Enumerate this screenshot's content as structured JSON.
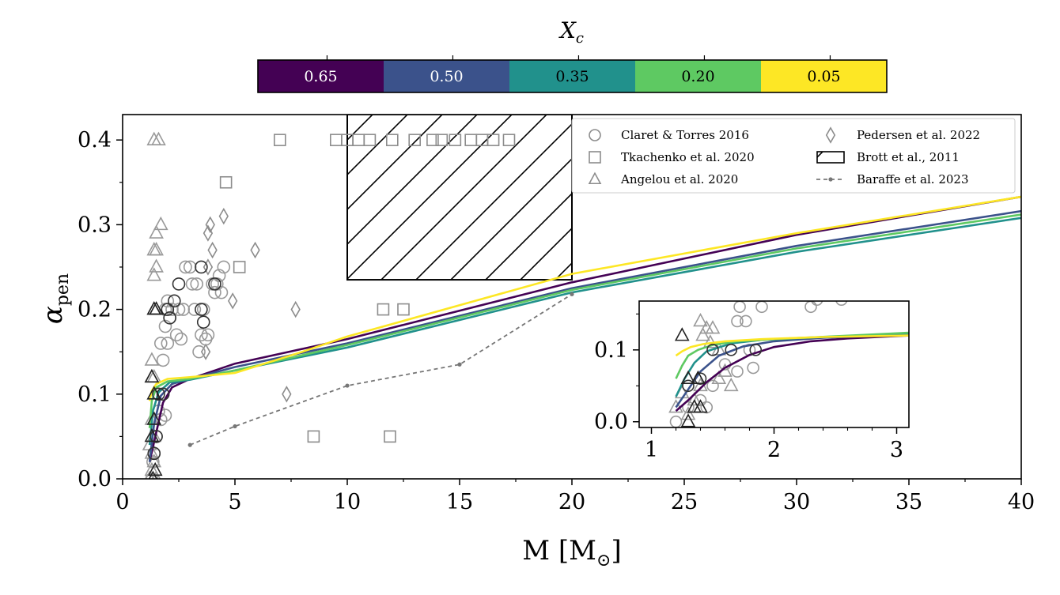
{
  "chart_data": {
    "type": "scatter",
    "title": "",
    "xlabel": "M [M",
    "xlabel_sub": "⊙",
    "xlabel_end": "]",
    "ylabel": "α",
    "ylabel_sub": "pen",
    "xlim": [
      0,
      40
    ],
    "ylim": [
      0,
      0.43
    ],
    "x_ticks": [
      0,
      5,
      10,
      15,
      20,
      25,
      30,
      35,
      40
    ],
    "x_tick_labels": [
      "0",
      "5",
      "10",
      "15",
      "20",
      "25",
      "30",
      "35",
      "40"
    ],
    "y_ticks": [
      0.0,
      0.1,
      0.2,
      0.3,
      0.4
    ],
    "y_tick_labels": [
      "0.0",
      "0.1",
      "0.2",
      "0.3",
      "0.4"
    ],
    "colorbar": {
      "title": "X",
      "title_sub": "c",
      "labels": [
        "0.65",
        "0.50",
        "0.35",
        "0.20",
        "0.05"
      ],
      "colors": [
        "#440154",
        "#3b528b",
        "#21918c",
        "#5ec962",
        "#fde725"
      ],
      "label_colors": [
        "#ffffff",
        "#ffffff",
        "#000000",
        "#000000",
        "#000000"
      ]
    },
    "legend": {
      "position": "upper-right",
      "entries": [
        {
          "label": "Claret & Torres 2016",
          "marker": "circle"
        },
        {
          "label": "Tkachenko et al. 2020",
          "marker": "square"
        },
        {
          "label": "Angelou et al. 2020",
          "marker": "triangle"
        },
        {
          "label": "Pedersen et al. 2022",
          "marker": "diamond"
        },
        {
          "label": "Brott et al.,  2011",
          "marker": "hatch"
        },
        {
          "label": "Baraffe et al. 2023",
          "marker": "dashed"
        }
      ]
    },
    "brott_region": {
      "x": [
        10,
        20
      ],
      "y": [
        0.235,
        0.43
      ]
    },
    "baraffe": {
      "x": [
        3,
        5,
        10,
        15,
        20
      ],
      "y": [
        0.04,
        0.062,
        0.11,
        0.135,
        0.218
      ]
    },
    "series": [
      {
        "name": "0.65",
        "color": "#440154",
        "x": [
          1.2,
          1.5,
          1.8,
          2.2,
          3,
          5,
          10,
          20,
          30,
          40
        ],
        "y": [
          0.02,
          0.055,
          0.09,
          0.108,
          0.118,
          0.136,
          0.165,
          0.232,
          0.288,
          0.333
        ]
      },
      {
        "name": "0.50",
        "color": "#3b528b",
        "x": [
          1.2,
          1.4,
          1.7,
          2.2,
          3,
          5,
          10,
          20,
          30,
          40
        ],
        "y": [
          0.02,
          0.065,
          0.098,
          0.112,
          0.118,
          0.132,
          0.16,
          0.225,
          0.275,
          0.316
        ]
      },
      {
        "name": "0.35",
        "color": "#21918c",
        "x": [
          1.2,
          1.35,
          1.6,
          2.1,
          3,
          5,
          10,
          20,
          30,
          40
        ],
        "y": [
          0.04,
          0.08,
          0.102,
          0.114,
          0.117,
          0.128,
          0.155,
          0.22,
          0.268,
          0.308
        ]
      },
      {
        "name": "0.20",
        "color": "#5ec962",
        "x": [
          1.2,
          1.3,
          1.5,
          2.0,
          3,
          5,
          10,
          20,
          30,
          40
        ],
        "y": [
          0.06,
          0.092,
          0.108,
          0.115,
          0.118,
          0.128,
          0.158,
          0.223,
          0.272,
          0.312
        ]
      },
      {
        "name": "0.05",
        "color": "#fde725",
        "x": [
          1.2,
          1.3,
          1.5,
          2.0,
          3,
          5,
          8,
          10,
          20,
          30,
          40
        ],
        "y": [
          0.092,
          0.104,
          0.112,
          0.118,
          0.12,
          0.125,
          0.15,
          0.168,
          0.242,
          0.29,
          0.333
        ]
      }
    ],
    "claret_torres_2016": {
      "light": [
        [
          1.3,
          0.0
        ],
        [
          1.35,
          0.02
        ],
        [
          1.4,
          0.03
        ],
        [
          1.5,
          0.05
        ],
        [
          1.6,
          0.08
        ],
        [
          1.7,
          0.07
        ],
        [
          1.8,
          0.1
        ],
        [
          1.9,
          0.075
        ],
        [
          1.8,
          0.14
        ],
        [
          1.7,
          0.16
        ],
        [
          1.9,
          0.18
        ],
        [
          2.0,
          0.16
        ],
        [
          2.1,
          0.19
        ],
        [
          1.9,
          0.2
        ],
        [
          2.0,
          0.21
        ],
        [
          2.2,
          0.2
        ],
        [
          2.4,
          0.17
        ],
        [
          2.6,
          0.165
        ],
        [
          2.5,
          0.2
        ],
        [
          2.7,
          0.2
        ],
        [
          2.8,
          0.25
        ],
        [
          3.0,
          0.25
        ],
        [
          3.1,
          0.23
        ],
        [
          3.2,
          0.2
        ],
        [
          3.3,
          0.23
        ],
        [
          3.4,
          0.15
        ],
        [
          3.5,
          0.17
        ],
        [
          3.6,
          0.2
        ],
        [
          3.7,
          0.165
        ],
        [
          3.8,
          0.17
        ],
        [
          4.0,
          0.23
        ],
        [
          4.1,
          0.22
        ],
        [
          4.3,
          0.24
        ],
        [
          4.5,
          0.25
        ],
        [
          4.2,
          0.23
        ],
        [
          4.4,
          0.22
        ]
      ],
      "dark": [
        [
          1.4,
          0.03
        ],
        [
          1.5,
          0.05
        ],
        [
          1.6,
          0.1
        ],
        [
          1.8,
          0.1
        ],
        [
          2.0,
          0.2
        ],
        [
          2.1,
          0.19
        ],
        [
          2.3,
          0.21
        ],
        [
          2.5,
          0.23
        ],
        [
          3.5,
          0.25
        ],
        [
          3.6,
          0.185
        ],
        [
          4.1,
          0.23
        ],
        [
          3.5,
          0.2
        ]
      ]
    },
    "tkachenko_2020": [
      [
        7.0,
        0.4
      ],
      [
        9.5,
        0.4
      ],
      [
        10.0,
        0.4
      ],
      [
        10.5,
        0.4
      ],
      [
        11.0,
        0.4
      ],
      [
        12.0,
        0.4
      ],
      [
        13.0,
        0.4
      ],
      [
        13.8,
        0.4
      ],
      [
        14.2,
        0.4
      ],
      [
        14.8,
        0.4
      ],
      [
        15.5,
        0.4
      ],
      [
        16.0,
        0.4
      ],
      [
        16.5,
        0.4
      ],
      [
        17.2,
        0.4
      ],
      [
        4.6,
        0.35
      ],
      [
        5.2,
        0.25
      ],
      [
        11.6,
        0.2
      ],
      [
        12.5,
        0.2
      ],
      [
        8.5,
        0.05
      ],
      [
        11.9,
        0.05
      ]
    ],
    "angelou_2020": {
      "light": [
        [
          1.4,
          0.4
        ],
        [
          1.6,
          0.4
        ],
        [
          1.5,
          0.29
        ],
        [
          1.7,
          0.3
        ],
        [
          1.4,
          0.27
        ],
        [
          1.5,
          0.27
        ],
        [
          1.5,
          0.25
        ],
        [
          1.4,
          0.24
        ],
        [
          1.4,
          0.2
        ],
        [
          1.3,
          0.14
        ],
        [
          1.4,
          0.12
        ],
        [
          1.3,
          0.12
        ],
        [
          1.2,
          0.04
        ],
        [
          1.3,
          0.03
        ],
        [
          1.4,
          0.02
        ],
        [
          1.3,
          0.01
        ],
        [
          1.2,
          0.0
        ],
        [
          1.5,
          0.0
        ],
        [
          1.3,
          0.07
        ],
        [
          1.4,
          0.05
        ]
      ],
      "dark": [
        [
          1.4,
          0.2
        ],
        [
          1.5,
          0.2
        ],
        [
          1.3,
          0.12
        ],
        [
          1.4,
          0.1
        ],
        [
          1.3,
          0.05
        ],
        [
          1.4,
          0.07
        ],
        [
          1.35,
          0.0
        ],
        [
          1.45,
          0.01
        ]
      ]
    },
    "pedersen_2022": [
      [
        4.5,
        0.31
      ],
      [
        3.9,
        0.3
      ],
      [
        3.8,
        0.29
      ],
      [
        5.9,
        0.27
      ],
      [
        4.0,
        0.27
      ],
      [
        3.8,
        0.25
      ],
      [
        4.9,
        0.21
      ],
      [
        7.7,
        0.2
      ],
      [
        3.7,
        0.15
      ],
      [
        7.3,
        0.1
      ]
    ],
    "inset": {
      "xlim": [
        0.9,
        3.1
      ],
      "ylim": [
        -0.008,
        0.168
      ],
      "x_ticks": [
        1,
        2,
        3
      ],
      "x_tick_labels": [
        "1",
        "2",
        "3"
      ],
      "y_ticks": [
        0.0,
        0.1
      ],
      "y_tick_labels": [
        "0.0",
        "0.1"
      ],
      "claret_light": [
        [
          1.2,
          0.0
        ],
        [
          1.3,
          0.02
        ],
        [
          1.4,
          0.03
        ],
        [
          1.45,
          0.02
        ],
        [
          1.5,
          0.05
        ],
        [
          1.6,
          0.08
        ],
        [
          1.7,
          0.07
        ],
        [
          1.8,
          0.1
        ],
        [
          1.83,
          0.075
        ],
        [
          1.7,
          0.14
        ],
        [
          1.77,
          0.14
        ],
        [
          1.9,
          0.16
        ],
        [
          1.72,
          0.16
        ],
        [
          2.3,
          0.16
        ],
        [
          2.35,
          0.17
        ],
        [
          2.55,
          0.17
        ]
      ],
      "claret_dark": [
        [
          1.3,
          0.05
        ],
        [
          1.5,
          0.1
        ],
        [
          1.65,
          0.1
        ],
        [
          1.85,
          0.1
        ],
        [
          1.4,
          0.06
        ]
      ],
      "angelou_light": [
        [
          1.4,
          0.14
        ],
        [
          1.45,
          0.13
        ],
        [
          1.5,
          0.13
        ],
        [
          1.42,
          0.12
        ],
        [
          1.48,
          0.11
        ],
        [
          1.55,
          0.1
        ],
        [
          1.6,
          0.07
        ],
        [
          1.65,
          0.05
        ],
        [
          1.55,
          0.06
        ],
        [
          1.25,
          0.04
        ],
        [
          1.2,
          0.02
        ],
        [
          1.35,
          0.03
        ],
        [
          1.3,
          0.01
        ],
        [
          1.4,
          0.05
        ]
      ],
      "angelou_dark": [
        [
          1.25,
          0.12
        ],
        [
          1.4,
          0.02
        ],
        [
          1.3,
          0.06
        ],
        [
          1.35,
          0.02
        ],
        [
          1.38,
          0.06
        ],
        [
          1.3,
          0.0
        ]
      ],
      "series": [
        {
          "name": "0.65",
          "color": "#440154",
          "x": [
            1.2,
            1.3,
            1.45,
            1.6,
            1.8,
            2.0,
            2.3,
            2.6,
            3.1
          ],
          "y": [
            0.015,
            0.03,
            0.055,
            0.075,
            0.093,
            0.104,
            0.112,
            0.116,
            0.12
          ]
        },
        {
          "name": "0.50",
          "color": "#3b528b",
          "x": [
            1.2,
            1.3,
            1.4,
            1.55,
            1.75,
            2.0,
            2.4,
            3.1
          ],
          "y": [
            0.02,
            0.045,
            0.07,
            0.092,
            0.105,
            0.112,
            0.117,
            0.121
          ]
        },
        {
          "name": "0.35",
          "color": "#21918c",
          "x": [
            1.2,
            1.27,
            1.35,
            1.45,
            1.65,
            1.9,
            2.4,
            3.1
          ],
          "y": [
            0.035,
            0.06,
            0.082,
            0.098,
            0.109,
            0.114,
            0.118,
            0.123
          ]
        },
        {
          "name": "0.20",
          "color": "#5ec962",
          "x": [
            1.2,
            1.25,
            1.3,
            1.38,
            1.5,
            1.7,
            2.0,
            2.5,
            3.1
          ],
          "y": [
            0.06,
            0.078,
            0.092,
            0.1,
            0.107,
            0.112,
            0.115,
            0.119,
            0.124
          ]
        },
        {
          "name": "0.05",
          "color": "#fde725",
          "x": [
            1.2,
            1.25,
            1.32,
            1.42,
            1.6,
            1.9,
            2.4,
            3.1
          ],
          "y": [
            0.092,
            0.098,
            0.104,
            0.108,
            0.112,
            0.115,
            0.118,
            0.12
          ]
        }
      ]
    }
  }
}
